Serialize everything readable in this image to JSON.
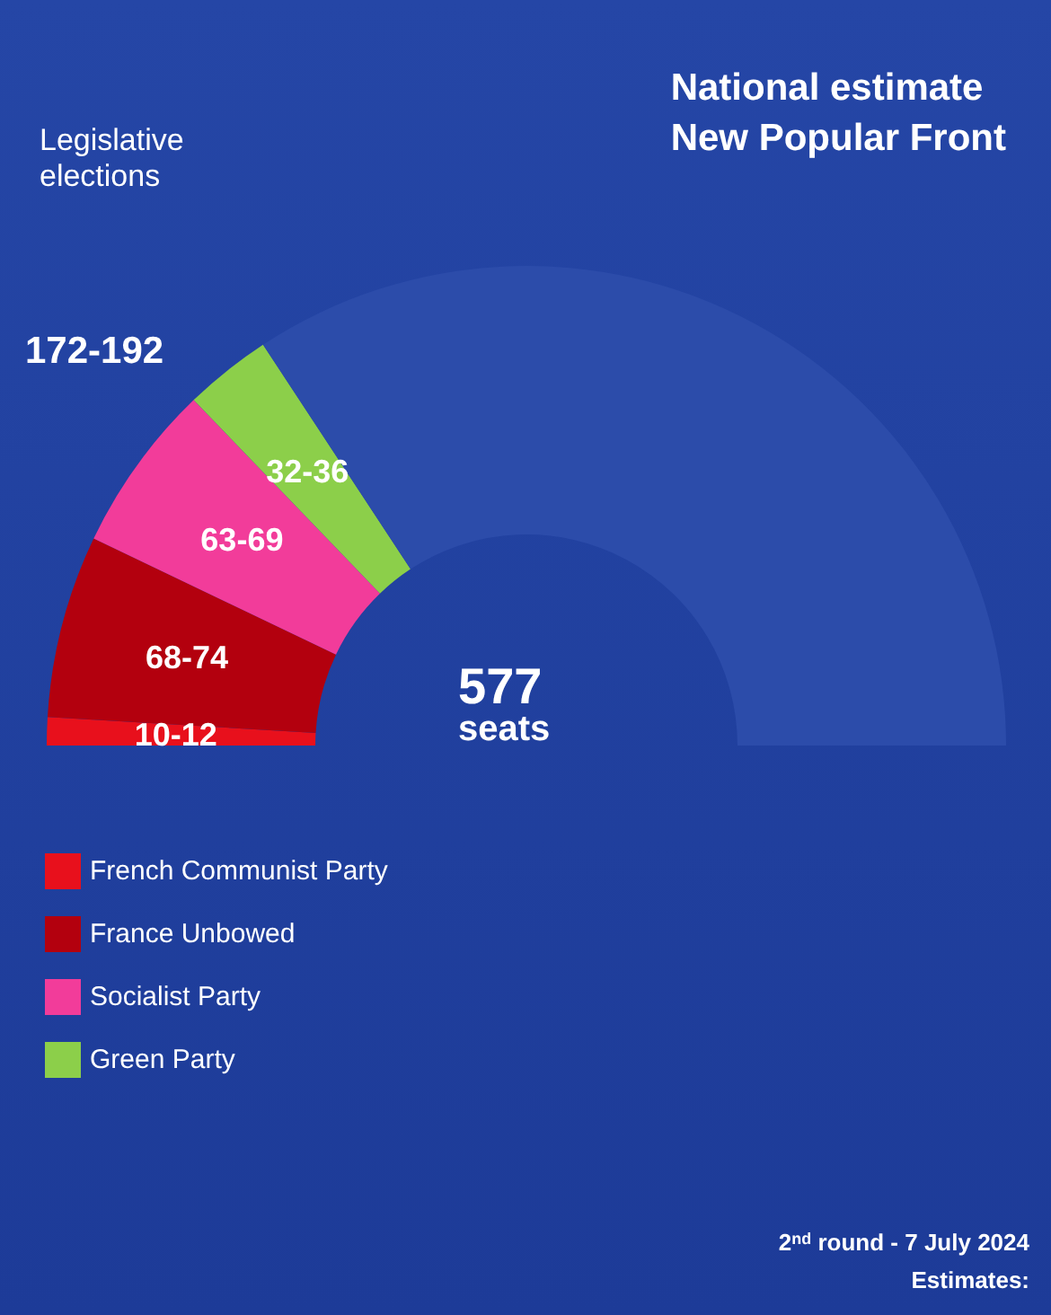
{
  "chart_data": {
    "type": "donut",
    "title": "National estimate\nNew Popular Front",
    "subtitle": "Legislative elections",
    "categories": [
      "French Communist Party",
      "France Unbowed",
      "Socialist Party",
      "Green Party",
      null
    ],
    "values": [
      1.9,
      12.3,
      11.4,
      5.9,
      68.5
    ],
    "value_labels": [
      "10-12",
      "68-74",
      "63-69",
      "32-36",
      null
    ],
    "colors": [
      "#e8101c",
      "#b3000e",
      "#f23c9a",
      "#8ccf4a",
      "#2c4caa"
    ],
    "annotations": [
      "172-192",
      "577\nseats",
      "2$^{nd}$ round - 7 July 2024",
      "Estimates:"
    ],
    "legend": "bottom left"
  }
}
